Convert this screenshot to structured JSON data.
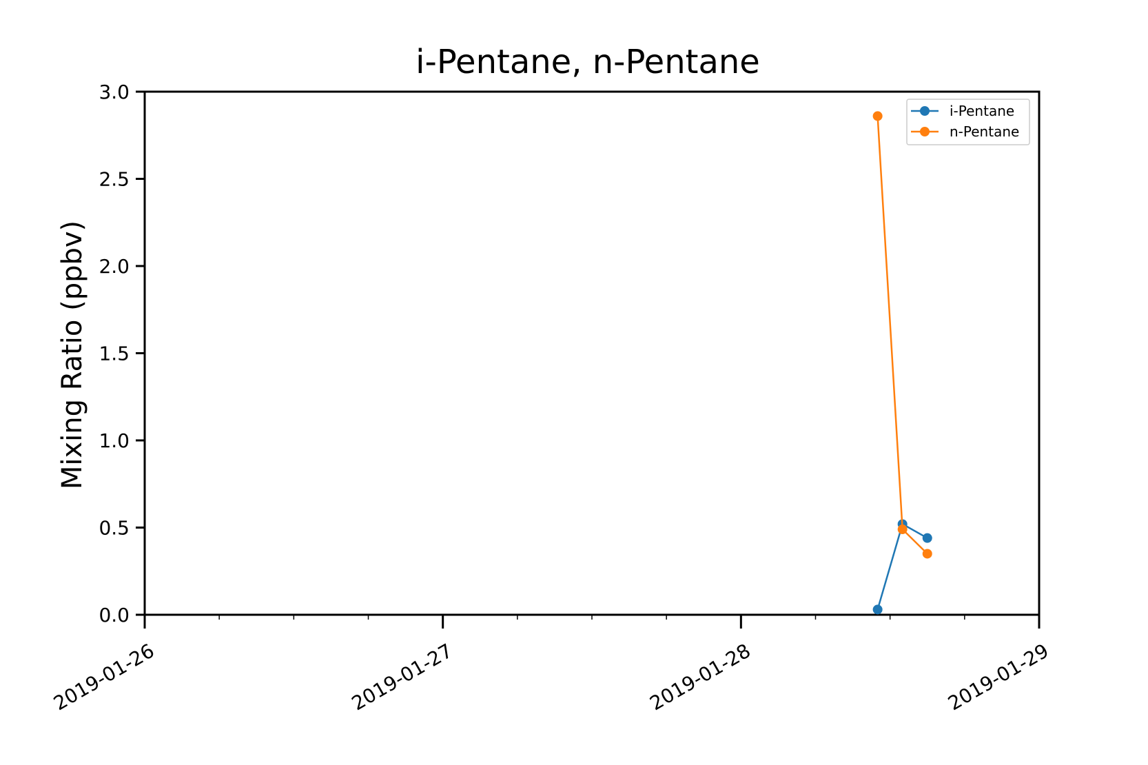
{
  "chart_data": {
    "type": "line",
    "title": "i-Pentane, n-Pentane",
    "xlabel": "",
    "ylabel": "Mixing Ratio (ppbv)",
    "x_ticks": [
      "2019-01-26",
      "2019-01-27",
      "2019-01-28",
      "2019-01-29"
    ],
    "xlim": [
      "2019-01-26T00:00",
      "2019-01-29T00:00"
    ],
    "y_ticks": [
      "0.0",
      "0.5",
      "1.0",
      "1.5",
      "2.0",
      "2.5",
      "3.0"
    ],
    "ylim": [
      0,
      3.0
    ],
    "grid": false,
    "legend_position": "top-right",
    "series": [
      {
        "name": "i-Pentane",
        "color": "#1f77b4",
        "x": [
          "2019-01-28T11:00",
          "2019-01-28T13:00",
          "2019-01-28T15:00"
        ],
        "y": [
          0.03,
          0.52,
          0.44
        ]
      },
      {
        "name": "n-Pentane",
        "color": "#ff7f0e",
        "x": [
          "2019-01-28T11:00",
          "2019-01-28T13:00",
          "2019-01-28T15:00"
        ],
        "y": [
          2.86,
          0.49,
          0.35
        ]
      }
    ]
  }
}
